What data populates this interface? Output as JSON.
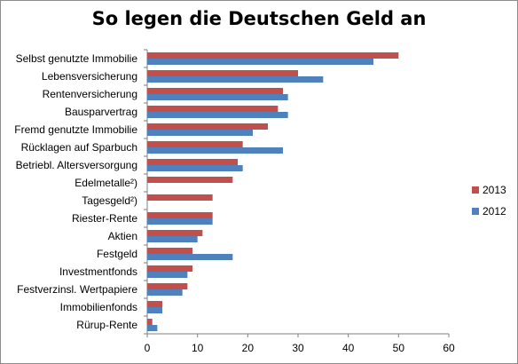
{
  "chart_data": {
    "type": "bar",
    "orientation": "horizontal",
    "title": "So legen die Deutschen Geld an",
    "categories": [
      "Selbst genutzte Immobilie",
      "Lebensversicherung",
      "Rentenversicherung",
      "Bausparvertrag",
      "Fremd genutzte Immobilie",
      "Rücklagen auf Sparbuch",
      "Betriebl. Altersversorgung",
      "Edelmetalle²)",
      "Tagesgeld²)",
      "Riester-Rente",
      "Aktien",
      "Festgeld",
      "Investmentfonds",
      "Festverzinsl. Wertpapiere",
      "Immobilienfonds",
      "Rürup-Rente"
    ],
    "series": [
      {
        "name": "2013",
        "color": "#c0504d",
        "values": [
          50,
          30,
          27,
          26,
          24,
          19,
          18,
          17,
          13,
          13,
          11,
          9,
          9,
          8,
          3,
          1
        ]
      },
      {
        "name": "2012",
        "color": "#4f81bd",
        "values": [
          45,
          35,
          28,
          28,
          21,
          27,
          19,
          null,
          null,
          13,
          10,
          17,
          8,
          7,
          3,
          2
        ]
      }
    ],
    "xlim": [
      0,
      60
    ],
    "xticks": [
      "0",
      "10",
      "20",
      "30",
      "40",
      "50",
      "60"
    ],
    "grid": false,
    "legend_position": "right"
  }
}
